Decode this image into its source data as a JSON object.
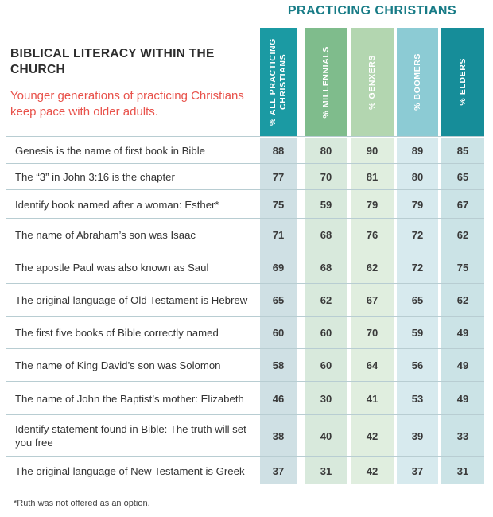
{
  "super_header": "PRACTICING CHRISTIANS",
  "title": "BIBLICAL LITERACY WITHIN THE CHURCH",
  "subtitle": "Younger generations of practicing Christians keep pace with older adults.",
  "footnote": "*Ruth was not offered as an option.",
  "chart_data": {
    "type": "table",
    "columns": [
      {
        "label": "% ALL PRACTICING CHRISTIANS",
        "header_bg": "#1b9aa3",
        "header_fg": "#ffffff",
        "cell_bg": "#cfe0e4"
      },
      {
        "label": "% MILLENNIALS",
        "header_bg": "#7fbc8c",
        "header_fg": "#ffffff",
        "cell_bg": "#d8e9dc"
      },
      {
        "label": "% GENXERS",
        "header_bg": "#b3d6b0",
        "header_fg": "#ffffff",
        "cell_bg": "#e0eedf"
      },
      {
        "label": "% BOOMERS",
        "header_bg": "#8ccbd4",
        "header_fg": "#ffffff",
        "cell_bg": "#d7eaee"
      },
      {
        "label": "% ELDERS",
        "header_bg": "#168d99",
        "header_fg": "#ffffff",
        "cell_bg": "#cbe3e6"
      }
    ],
    "rows": [
      {
        "label": "Genesis is the name of first book in Bible",
        "values": [
          88,
          80,
          90,
          89,
          85
        ]
      },
      {
        "label": "The “3” in John 3:16 is the chapter",
        "values": [
          77,
          70,
          81,
          80,
          65
        ]
      },
      {
        "label": "Identify book named after a woman: Esther*",
        "values": [
          75,
          59,
          79,
          79,
          67
        ]
      },
      {
        "label": "The name of Abraham’s son was Isaac",
        "values": [
          71,
          68,
          76,
          72,
          62
        ]
      },
      {
        "label": "The apostle Paul was also known as Saul",
        "values": [
          69,
          68,
          62,
          72,
          75
        ]
      },
      {
        "label": "The original language of Old Testament is Hebrew",
        "values": [
          65,
          62,
          67,
          65,
          62
        ]
      },
      {
        "label": "The first five books of Bible correctly named",
        "values": [
          60,
          60,
          70,
          59,
          49
        ]
      },
      {
        "label": "The name of King David’s son was Solomon",
        "values": [
          58,
          60,
          64,
          56,
          49
        ]
      },
      {
        "label": "The name of John the Baptist’s mother: Elizabeth",
        "values": [
          46,
          30,
          41,
          53,
          49
        ]
      },
      {
        "label": "Identify statement found in Bible: The truth will set you free",
        "values": [
          38,
          40,
          42,
          39,
          33
        ]
      },
      {
        "label": "The original language of New Testament is Greek",
        "values": [
          37,
          31,
          42,
          37,
          31
        ]
      }
    ]
  }
}
